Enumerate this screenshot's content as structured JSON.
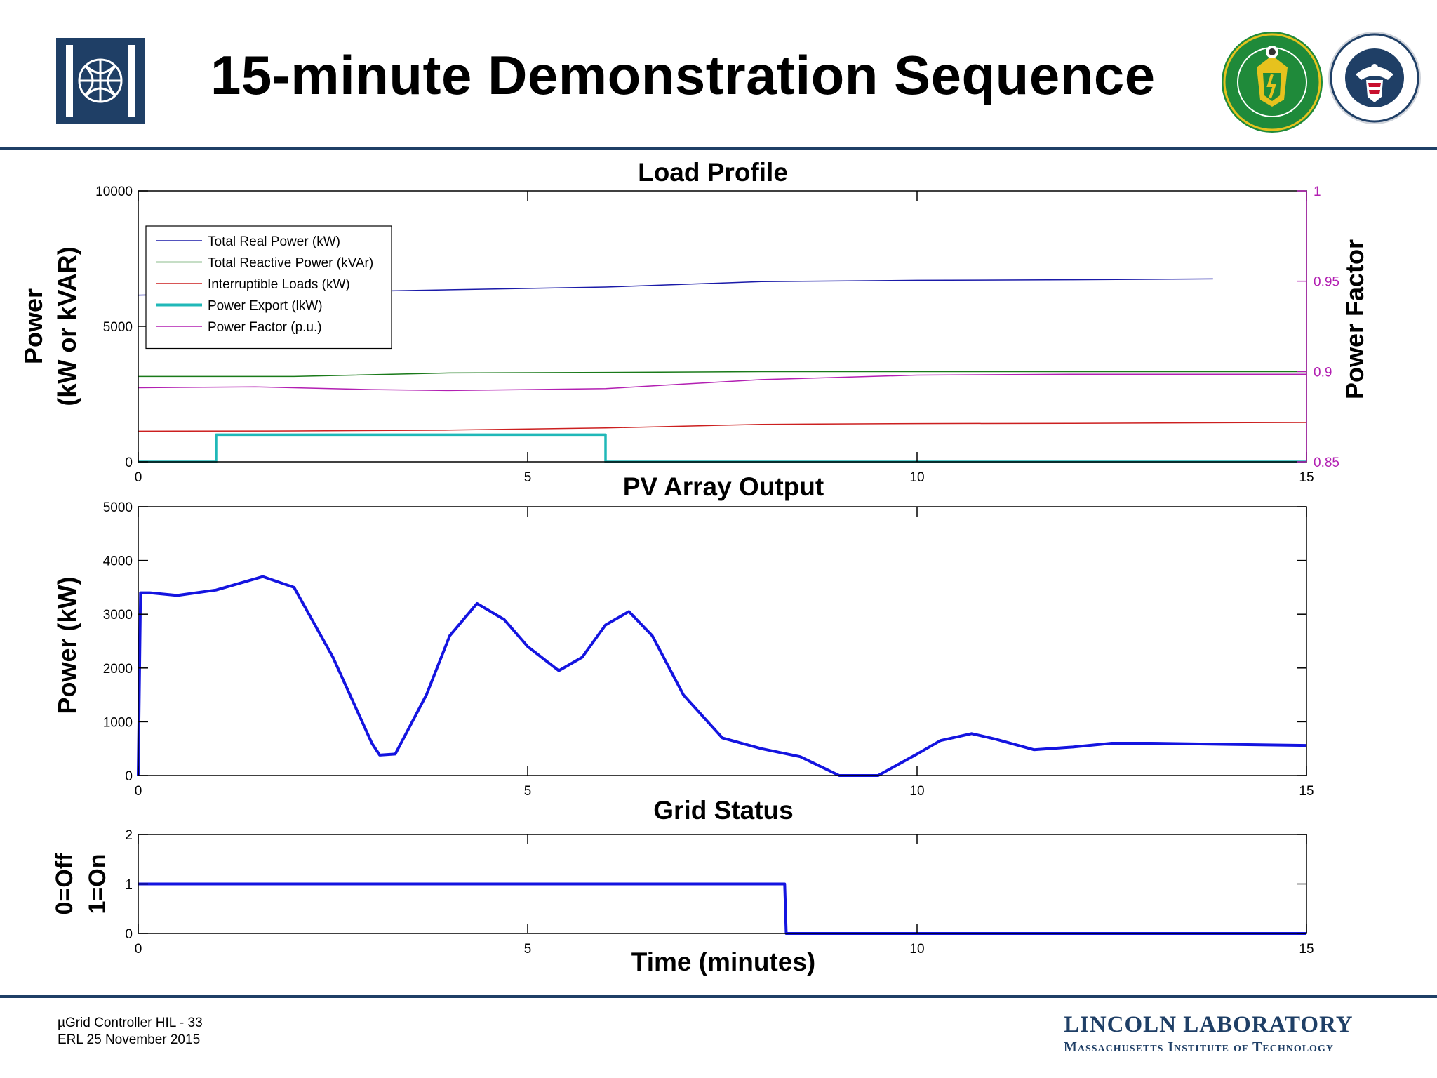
{
  "slide": {
    "title": "15-minute Demonstration Sequence",
    "footer": {
      "left_line1": "µGrid Controller HIL - 33",
      "left_line2": "ERL 25 November 2015",
      "lab_name": "LINCOLN LABORATORY",
      "institute": "Massachusetts Institute of Technology"
    },
    "logos": {
      "left": "mit-lincoln-lab-logo",
      "doe_text": "DEPARTMENT OF ENERGY · UNITED STATES OF AMERICA",
      "dhs_text": "U.S. DEPARTMENT OF HOMELAND SECURITY"
    },
    "accent_color": "#1f3f66"
  },
  "chart_data": [
    {
      "type": "line",
      "title": "Load Profile",
      "xlabel": "",
      "ylabel_line1": "Power",
      "ylabel_line2": "(kW or kVAR)",
      "y2label": "Power Factor",
      "xlim": [
        0,
        15
      ],
      "ylim": [
        0,
        10000
      ],
      "y2lim": [
        0.85,
        1
      ],
      "xticks": [
        0,
        5,
        10,
        15
      ],
      "yticks": [
        0,
        5000,
        10000
      ],
      "y2ticks": [
        0.85,
        0.9,
        0.95,
        1
      ],
      "legend_position": "top-left",
      "series": [
        {
          "name": "Total Real Power (kW)",
          "color": "#1a1aa8",
          "axis": "left",
          "width": 1.5,
          "x": [
            0,
            2,
            4,
            6,
            8,
            10,
            12,
            13.8
          ],
          "y": [
            6150,
            6250,
            6350,
            6450,
            6650,
            6700,
            6720,
            6750
          ]
        },
        {
          "name": "Total Reactive Power (kVAr)",
          "color": "#1a7a1a",
          "axis": "left",
          "width": 1.5,
          "x": [
            0,
            2,
            4,
            6,
            8,
            10,
            12,
            15
          ],
          "y": [
            3150,
            3150,
            3280,
            3300,
            3330,
            3330,
            3330,
            3330
          ]
        },
        {
          "name": "Interruptible Loads (kW)",
          "color": "#cc1f1f",
          "axis": "left",
          "width": 1.5,
          "x": [
            0,
            2,
            4,
            6,
            8,
            10,
            12,
            15
          ],
          "y": [
            1130,
            1140,
            1170,
            1250,
            1380,
            1410,
            1420,
            1450
          ]
        },
        {
          "name": "Power Export (lkW)",
          "color": "#20b8b8",
          "axis": "left",
          "width": 3.5,
          "x": [
            0,
            1,
            1,
            6,
            6,
            15
          ],
          "y": [
            0,
            0,
            1000,
            1000,
            0,
            0
          ]
        },
        {
          "name": "Power Factor (p.u.)",
          "color": "#b21fb2",
          "axis": "right",
          "width": 1.5,
          "x": [
            0,
            1.5,
            3,
            4,
            6,
            7,
            8,
            10,
            12,
            15
          ],
          "y": [
            0.891,
            0.8915,
            0.89,
            0.8895,
            0.8905,
            0.893,
            0.8955,
            0.898,
            0.8985,
            0.8985
          ]
        }
      ]
    },
    {
      "type": "line",
      "title": "PV Array Output",
      "xlabel": "",
      "ylabel": "Power (kW)",
      "xlim": [
        0,
        15
      ],
      "ylim": [
        0,
        5000
      ],
      "xticks": [
        0,
        5,
        10,
        15
      ],
      "yticks": [
        0,
        1000,
        2000,
        3000,
        4000,
        5000
      ],
      "series": [
        {
          "name": "",
          "color": "#1414e0",
          "width": 4,
          "x": [
            0,
            0.03,
            0.15,
            0.5,
            1,
            1.6,
            2,
            2.5,
            3,
            3.1,
            3.3,
            3.7,
            4.0,
            4.35,
            4.7,
            5.0,
            5.4,
            5.7,
            6.0,
            6.3,
            6.6,
            7.0,
            7.5,
            8.0,
            8.5,
            9.0,
            9.1,
            9.4,
            9.5,
            10.0,
            10.3,
            10.7,
            11.0,
            11.5,
            12.0,
            12.5,
            13.0,
            14.0,
            15.0
          ],
          "y": [
            0,
            3400,
            3400,
            3350,
            3450,
            3700,
            3500,
            2200,
            600,
            380,
            400,
            1500,
            2600,
            3200,
            2900,
            2400,
            1950,
            2200,
            2800,
            3050,
            2600,
            1500,
            700,
            500,
            350,
            0,
            0,
            0,
            0,
            400,
            650,
            780,
            680,
            480,
            530,
            600,
            600,
            580,
            560
          ]
        }
      ]
    },
    {
      "type": "line",
      "title": "Grid Status",
      "xlabel": "Time (minutes)",
      "ylabel_line1": "0=Off",
      "ylabel_line2": "1=On",
      "xlim": [
        0,
        15
      ],
      "ylim": [
        0,
        2
      ],
      "xticks": [
        0,
        5,
        10,
        15
      ],
      "yticks": [
        0,
        1,
        2
      ],
      "series": [
        {
          "name": "",
          "color": "#1414e0",
          "width": 4,
          "x": [
            0,
            8.3,
            8.32,
            15
          ],
          "y": [
            1,
            1,
            0,
            0
          ]
        }
      ]
    }
  ]
}
